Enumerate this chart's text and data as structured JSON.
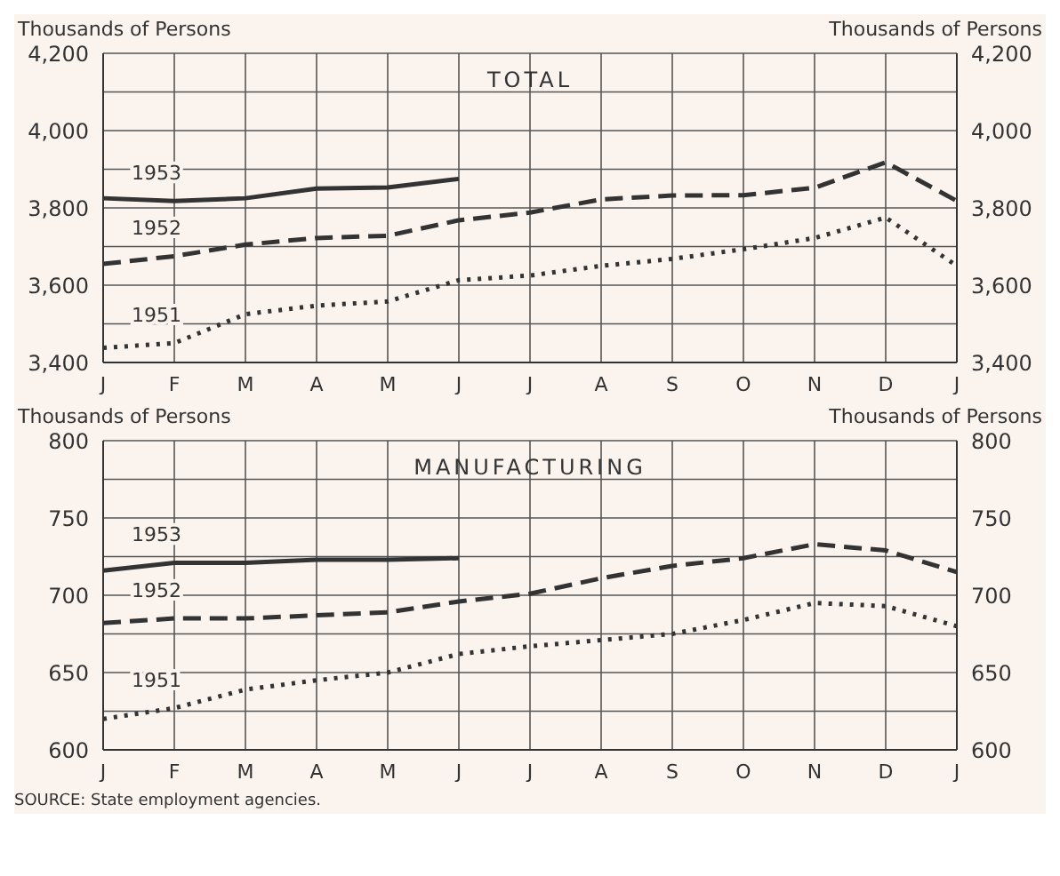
{
  "chart_data": [
    {
      "type": "line",
      "title": "TOTAL",
      "ylabel": "Thousands of Persons",
      "y2label": "Thousands of Persons",
      "categories": [
        "J",
        "F",
        "M",
        "A",
        "M",
        "J",
        "J",
        "A",
        "S",
        "O",
        "N",
        "D",
        "J"
      ],
      "series": [
        {
          "name": "1953",
          "color": "#333333",
          "line_style": "solid",
          "values": [
            3825,
            3818,
            3825,
            3850,
            3853,
            3875,
            null,
            null,
            null,
            null,
            null,
            null,
            null
          ]
        },
        {
          "name": "1952",
          "color": "#333333",
          "line_style": "dashed",
          "values": [
            3655,
            3675,
            3705,
            3722,
            3728,
            3768,
            3788,
            3822,
            3832,
            3833,
            3852,
            3918,
            3818
          ]
        },
        {
          "name": "1951",
          "color": "#333333",
          "line_style": "dotted",
          "values": [
            3438,
            3450,
            3525,
            3547,
            3558,
            3613,
            3625,
            3650,
            3668,
            3693,
            3722,
            3775,
            3650
          ]
        }
      ],
      "ylim": [
        3400,
        4200
      ],
      "yticks": [
        {
          "value": 3400,
          "label": "3,400"
        },
        {
          "value": 3500,
          "label": null
        },
        {
          "value": 3600,
          "label": "3,600"
        },
        {
          "value": 3700,
          "label": null
        },
        {
          "value": 3800,
          "label": "3,800"
        },
        {
          "value": 3900,
          "label": null
        },
        {
          "value": 4000,
          "label": "4,000"
        },
        {
          "value": 4100,
          "label": null
        },
        {
          "value": 4200,
          "label": "4,200"
        }
      ],
      "y2lim": [
        3400,
        4200
      ],
      "y2ticks": [
        {
          "value": 3400,
          "label": "3,400"
        },
        {
          "value": 3600,
          "label": "3,600"
        },
        {
          "value": 3800,
          "label": "3,800"
        },
        {
          "value": 4000,
          "label": "4,000"
        },
        {
          "value": 4200,
          "label": "4,200"
        }
      ],
      "grid": true,
      "legend": false,
      "marker": "none"
    },
    {
      "type": "line",
      "title": "MANUFACTURING",
      "ylabel": "Thousands of Persons",
      "y2label": "Thousands of Persons",
      "categories": [
        "J",
        "F",
        "M",
        "A",
        "M",
        "J",
        "J",
        "A",
        "S",
        "O",
        "N",
        "D",
        "J"
      ],
      "series": [
        {
          "name": "1953",
          "color": "#333333",
          "line_style": "solid",
          "values": [
            716,
            721,
            721,
            723,
            723,
            724,
            null,
            null,
            null,
            null,
            null,
            null,
            null
          ]
        },
        {
          "name": "1952",
          "color": "#333333",
          "line_style": "dashed",
          "values": [
            682,
            685,
            685,
            687,
            689,
            696,
            701,
            711,
            719,
            724,
            733,
            729,
            715
          ]
        },
        {
          "name": "1951",
          "color": "#333333",
          "line_style": "dotted",
          "values": [
            620,
            627,
            639,
            645,
            650,
            662,
            667,
            671,
            675,
            684,
            695,
            693,
            680
          ]
        }
      ],
      "ylim": [
        600,
        800
      ],
      "yticks": [
        600,
        {
          "value": 625,
          "label": null
        },
        650,
        {
          "value": 675,
          "label": null
        },
        700,
        {
          "value": 725,
          "label": null
        },
        750,
        {
          "value": 775,
          "label": null
        },
        800
      ],
      "y2lim": [
        600,
        800
      ],
      "y2ticks": [
        600,
        650,
        700,
        750,
        800
      ],
      "grid": true,
      "legend": false,
      "marker": "none",
      "annotations": [
        "SOURCE: State employment agencies."
      ]
    }
  ]
}
